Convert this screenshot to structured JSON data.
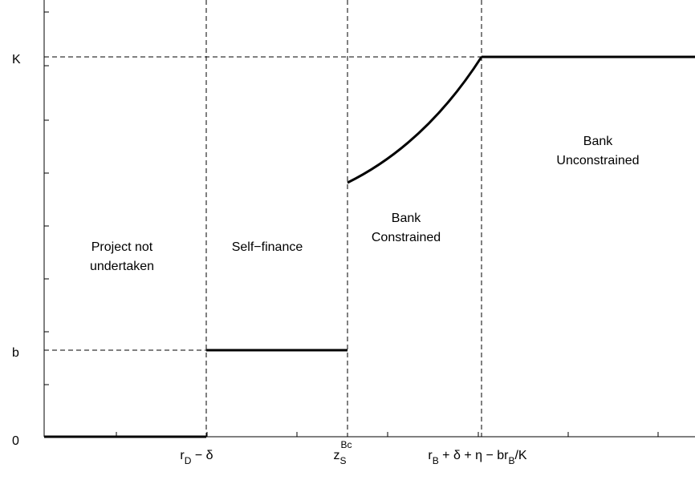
{
  "y_labels": [
    "K",
    "b",
    "0"
  ],
  "regions": [
    [
      "Project not",
      "undertaken"
    ],
    [
      "Self−finance"
    ],
    [
      "Bank",
      "Constrained"
    ],
    [
      "Bank",
      "Unconstrained"
    ]
  ],
  "x_labels": [
    [
      {
        "t": "r"
      },
      {
        "sub": "D"
      },
      {
        "t": " − δ"
      }
    ],
    [
      {
        "t": "z"
      },
      {
        "sub": "S"
      },
      {
        "sup": "Bc"
      }
    ],
    [
      {
        "t": "r"
      },
      {
        "sub": "B"
      },
      {
        "t": " + δ + η − br"
      },
      {
        "sub": "B"
      },
      {
        "t": "/K"
      }
    ]
  ]
}
